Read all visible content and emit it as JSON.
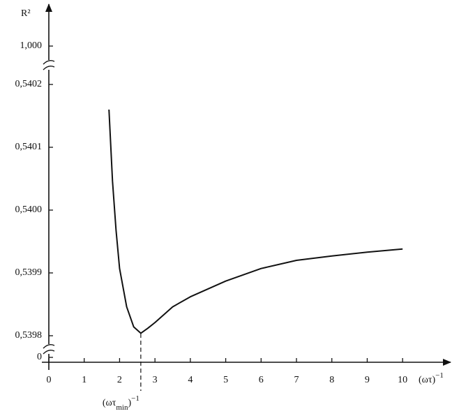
{
  "chart_data": {
    "type": "line",
    "y_axis_label": "R²",
    "x_axis_label": [
      "(ωτ)",
      "−1"
    ],
    "annotation": {
      "x": 2.6,
      "label": [
        "(ωτ",
        "min",
        ")",
        "−1"
      ]
    },
    "x": [
      1.7,
      1.8,
      1.9,
      2.0,
      2.2,
      2.4,
      2.6,
      2.8,
      3.0,
      3.5,
      4.0,
      5.0,
      6.0,
      7.0,
      8.0,
      9.0,
      10.0
    ],
    "series": [
      {
        "color": "#111111",
        "values": [
          0.54016,
          0.540046,
          0.539968,
          0.539907,
          0.539846,
          0.539814,
          0.539804,
          0.539812,
          0.539821,
          0.539846,
          0.539862,
          0.539887,
          0.539907,
          0.53992,
          0.539927,
          0.539933,
          0.539938
        ]
      }
    ],
    "xlim": [
      0,
      11.2
    ],
    "xticks": [
      0,
      1,
      2,
      3,
      4,
      5,
      6,
      7,
      8,
      9,
      10
    ],
    "ylim": [
      0.5398,
      0.5402
    ],
    "yticks": [
      {
        "value": 0.5398,
        "label": "0,5398"
      },
      {
        "value": 0.5399,
        "label": "0,5399"
      },
      {
        "value": 0.54,
        "label": "0,5400"
      },
      {
        "value": 0.5401,
        "label": "0,5401"
      },
      {
        "value": 0.5402,
        "label": "0,5402"
      }
    ],
    "y_break_ticks": [
      0,
      {
        "value": 1,
        "label": "1,000"
      }
    ]
  }
}
